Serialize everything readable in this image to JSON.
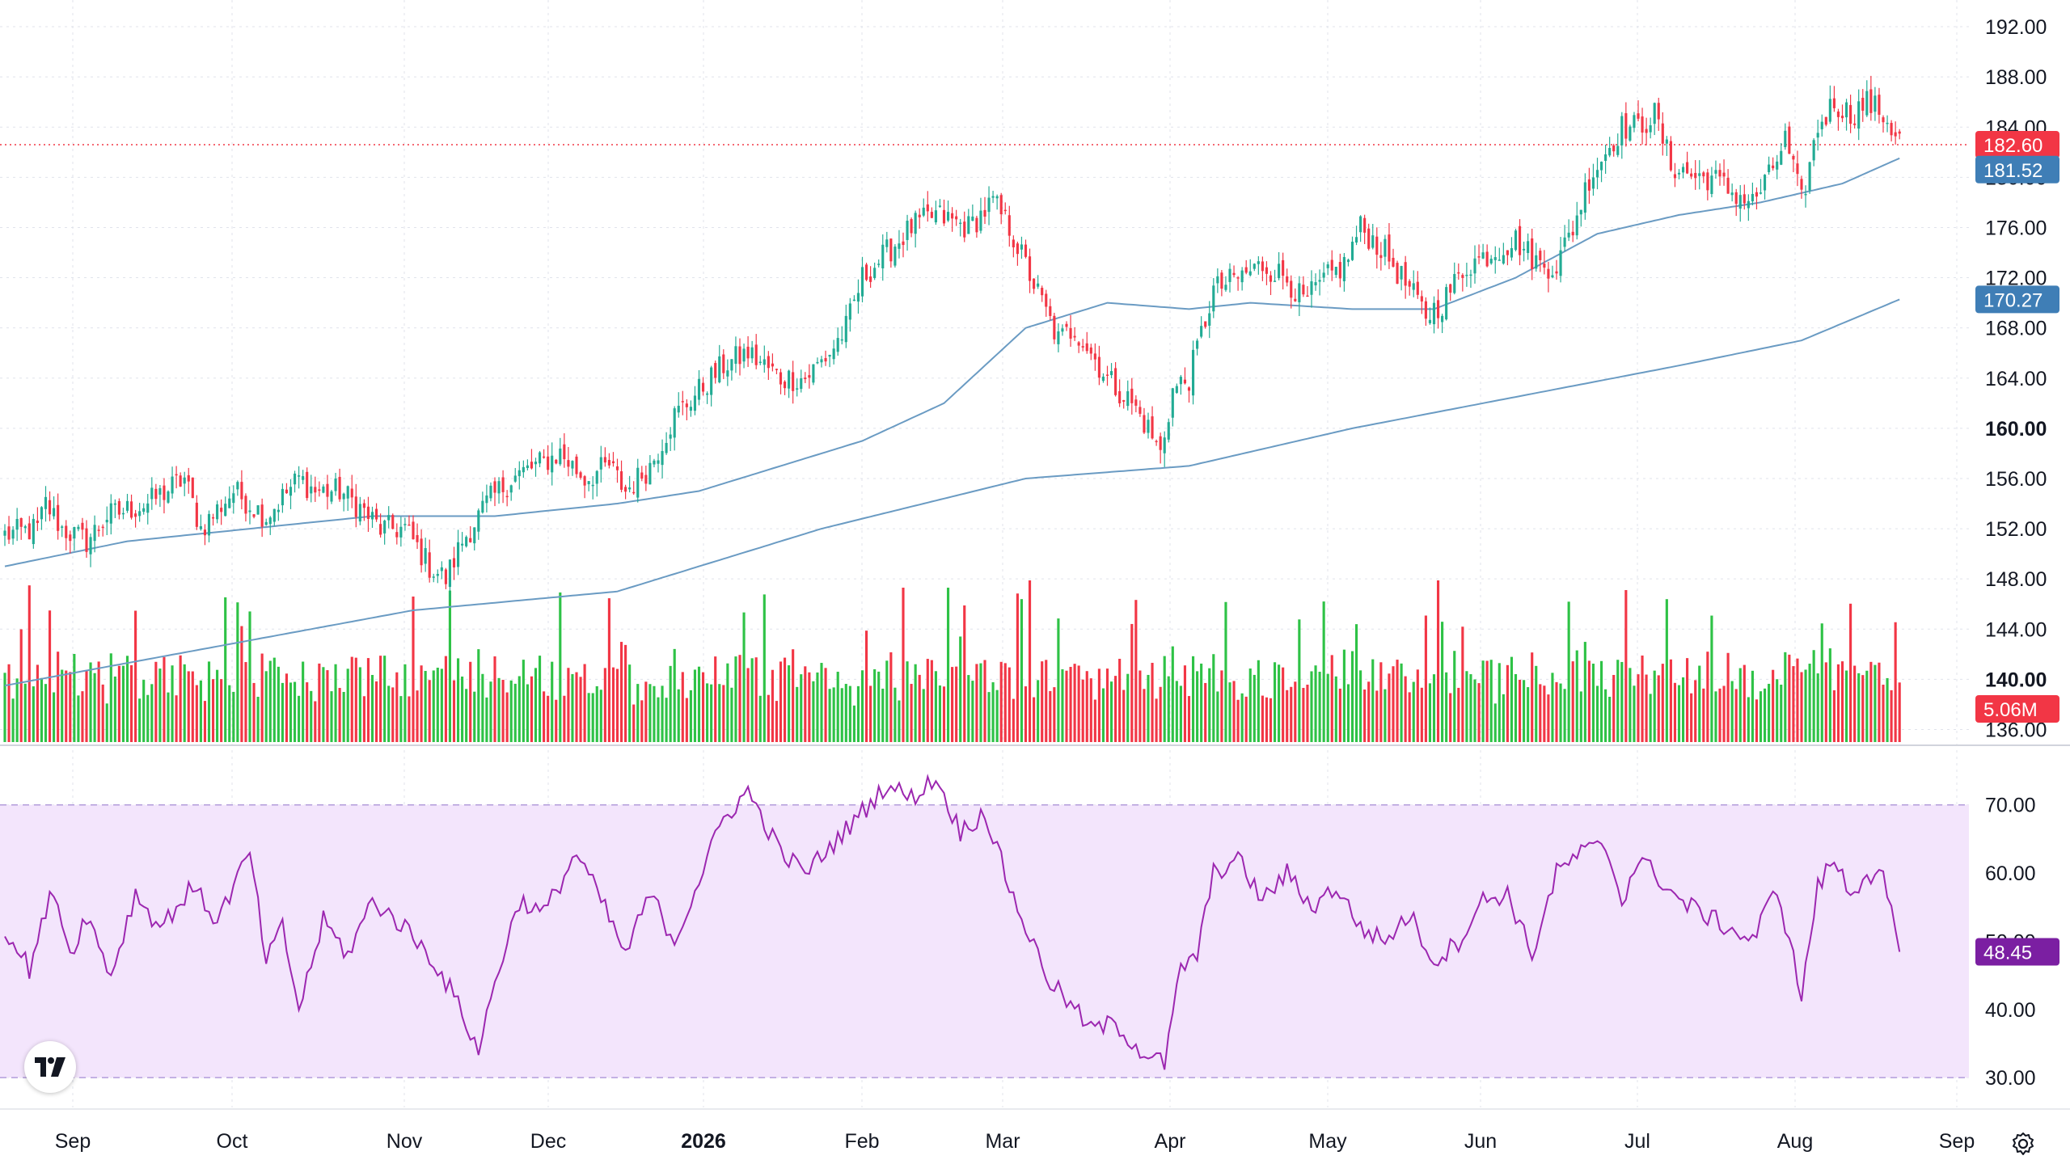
{
  "chart_data": {
    "type": "candlestick",
    "x_axis": {
      "labels": [
        "Sep",
        "Oct",
        "Nov",
        "Dec",
        "2026",
        "Feb",
        "Mar",
        "Apr",
        "May",
        "Jun",
        "Jul",
        "Aug",
        "Sep"
      ],
      "bold_labels": [
        "2026"
      ]
    },
    "price_axis": {
      "ticks": [
        "192.00",
        "188.00",
        "184.00",
        "180.00",
        "176.00",
        "172.00",
        "168.00",
        "164.00",
        "160.00",
        "156.00",
        "152.00",
        "148.00",
        "144.00",
        "140.00",
        "136.00"
      ],
      "bold_ticks": [
        "160.00",
        "140.00"
      ],
      "range": [
        135,
        194
      ]
    },
    "rsi_axis": {
      "ticks": [
        "70.00",
        "60.00",
        "50.00",
        "40.00",
        "30.00"
      ],
      "range": [
        28,
        74
      ],
      "band": [
        30,
        70
      ]
    },
    "last_price": {
      "value": 182.6,
      "label": "182.60"
    },
    "ma_fast": {
      "value": 181.52,
      "label": "181.52"
    },
    "ma_slow": {
      "value": 170.27,
      "label": "170.27"
    },
    "volume_last": {
      "label": "5.06M"
    },
    "rsi_last": {
      "value": 48.45,
      "label": "48.45"
    },
    "anchors": {
      "close": [
        [
          0,
          151.5
        ],
        [
          8,
          152
        ],
        [
          10,
          154
        ],
        [
          14,
          152
        ],
        [
          20,
          151
        ],
        [
          25,
          153
        ],
        [
          35,
          154
        ],
        [
          44,
          156
        ],
        [
          48,
          152
        ],
        [
          56,
          155
        ],
        [
          64,
          153
        ],
        [
          72,
          156
        ],
        [
          76,
          155
        ],
        [
          82,
          155
        ],
        [
          86,
          154
        ],
        [
          92,
          152
        ],
        [
          98,
          152
        ],
        [
          100,
          151
        ],
        [
          104,
          149
        ],
        [
          108,
          148
        ],
        [
          112,
          151
        ],
        [
          118,
          154
        ],
        [
          124,
          156
        ],
        [
          130,
          157
        ],
        [
          136,
          158
        ],
        [
          142,
          156
        ],
        [
          148,
          157
        ],
        [
          152,
          155
        ],
        [
          158,
          157
        ],
        [
          164,
          161
        ],
        [
          170,
          163
        ],
        [
          176,
          165
        ],
        [
          182,
          166
        ],
        [
          186,
          165
        ],
        [
          190,
          164
        ],
        [
          196,
          164
        ],
        [
          202,
          166
        ],
        [
          206,
          168
        ],
        [
          210,
          172
        ],
        [
          216,
          174
        ],
        [
          222,
          176
        ],
        [
          228,
          177
        ],
        [
          236,
          176
        ],
        [
          242,
          178
        ],
        [
          246,
          176
        ],
        [
          250,
          173
        ],
        [
          254,
          170
        ],
        [
          258,
          167
        ],
        [
          262,
          168
        ],
        [
          266,
          166
        ],
        [
          270,
          164
        ],
        [
          276,
          162
        ],
        [
          280,
          160
        ],
        [
          283,
          158
        ],
        [
          286,
          163
        ],
        [
          290,
          164
        ],
        [
          296,
          171
        ],
        [
          302,
          172
        ],
        [
          308,
          173
        ],
        [
          314,
          172
        ],
        [
          318,
          170
        ],
        [
          324,
          172
        ],
        [
          328,
          173
        ],
        [
          332,
          176
        ],
        [
          338,
          174
        ],
        [
          344,
          171
        ],
        [
          348,
          169
        ],
        [
          352,
          170
        ],
        [
          358,
          173
        ],
        [
          364,
          174
        ],
        [
          370,
          175
        ],
        [
          376,
          173
        ],
        [
          380,
          173
        ],
        [
          384,
          176
        ],
        [
          388,
          180
        ],
        [
          392,
          182
        ],
        [
          396,
          184
        ],
        [
          400,
          184
        ],
        [
          404,
          185
        ],
        [
          408,
          181
        ],
        [
          414,
          180
        ],
        [
          418,
          180
        ],
        [
          422,
          179
        ],
        [
          428,
          178
        ],
        [
          432,
          180
        ],
        [
          436,
          183
        ],
        [
          440,
          178
        ],
        [
          444,
          184
        ],
        [
          448,
          186
        ],
        [
          452,
          185
        ],
        [
          456,
          186
        ],
        [
          460,
          185
        ],
        [
          464,
          183
        ]
      ],
      "ma_fast": [
        [
          0,
          149
        ],
        [
          30,
          151
        ],
        [
          60,
          152
        ],
        [
          90,
          153
        ],
        [
          120,
          153
        ],
        [
          150,
          154
        ],
        [
          170,
          155
        ],
        [
          190,
          157
        ],
        [
          210,
          159
        ],
        [
          230,
          162
        ],
        [
          250,
          168
        ],
        [
          270,
          170
        ],
        [
          290,
          169.5
        ],
        [
          305,
          170
        ],
        [
          330,
          169.5
        ],
        [
          350,
          169.5
        ],
        [
          370,
          172
        ],
        [
          390,
          175.5
        ],
        [
          410,
          177
        ],
        [
          430,
          178
        ],
        [
          450,
          179.5
        ],
        [
          464,
          181.52
        ]
      ],
      "ma_slow": [
        [
          0,
          139.5
        ],
        [
          50,
          142.5
        ],
        [
          100,
          145.5
        ],
        [
          150,
          147
        ],
        [
          200,
          152
        ],
        [
          250,
          156
        ],
        [
          290,
          157
        ],
        [
          330,
          160
        ],
        [
          370,
          162.5
        ],
        [
          410,
          165
        ],
        [
          440,
          167
        ],
        [
          464,
          170.27
        ]
      ],
      "rsi": [
        [
          0,
          52
        ],
        [
          6,
          46
        ],
        [
          12,
          58
        ],
        [
          16,
          48
        ],
        [
          20,
          54
        ],
        [
          26,
          45
        ],
        [
          32,
          57
        ],
        [
          38,
          52
        ],
        [
          46,
          58
        ],
        [
          52,
          53
        ],
        [
          60,
          63
        ],
        [
          64,
          47
        ],
        [
          68,
          52
        ],
        [
          72,
          40
        ],
        [
          78,
          53
        ],
        [
          84,
          48
        ],
        [
          90,
          56
        ],
        [
          98,
          52
        ],
        [
          104,
          48
        ],
        [
          110,
          42
        ],
        [
          116,
          34
        ],
        [
          120,
          44
        ],
        [
          126,
          56
        ],
        [
          132,
          54
        ],
        [
          140,
          63
        ],
        [
          146,
          56
        ],
        [
          152,
          48
        ],
        [
          158,
          57
        ],
        [
          164,
          50
        ],
        [
          170,
          59
        ],
        [
          176,
          68
        ],
        [
          182,
          72
        ],
        [
          190,
          63
        ],
        [
          196,
          60
        ],
        [
          204,
          65
        ],
        [
          210,
          69
        ],
        [
          216,
          73
        ],
        [
          222,
          71
        ],
        [
          228,
          74
        ],
        [
          234,
          66
        ],
        [
          240,
          69
        ],
        [
          246,
          58
        ],
        [
          250,
          52
        ],
        [
          256,
          44
        ],
        [
          262,
          40
        ],
        [
          266,
          37
        ],
        [
          272,
          38
        ],
        [
          278,
          34
        ],
        [
          284,
          32
        ],
        [
          288,
          46
        ],
        [
          292,
          48
        ],
        [
          296,
          60
        ],
        [
          302,
          62
        ],
        [
          308,
          56
        ],
        [
          314,
          60
        ],
        [
          320,
          55
        ],
        [
          326,
          58
        ],
        [
          332,
          52
        ],
        [
          338,
          50
        ],
        [
          344,
          54
        ],
        [
          350,
          47
        ],
        [
          356,
          50
        ],
        [
          362,
          56
        ],
        [
          368,
          57
        ],
        [
          374,
          48
        ],
        [
          380,
          60
        ],
        [
          386,
          63
        ],
        [
          392,
          64
        ],
        [
          396,
          56
        ],
        [
          400,
          62
        ],
        [
          404,
          60
        ],
        [
          410,
          56
        ],
        [
          416,
          54
        ],
        [
          422,
          52
        ],
        [
          428,
          50
        ],
        [
          434,
          58
        ],
        [
          440,
          42
        ],
        [
          444,
          58
        ],
        [
          448,
          62
        ],
        [
          452,
          57
        ],
        [
          456,
          60
        ],
        [
          460,
          59
        ],
        [
          464,
          48.45
        ]
      ]
    },
    "colors": {
      "up": "#22ab94",
      "down": "#f23645",
      "volume_up": "#2ec246",
      "ma": "#6a9bc3",
      "rsi_line": "#9c27b0",
      "rsi_band": "#f3e5fc",
      "last_tag": "#f23645",
      "ma_tag": "#3f7eb6",
      "rsi_tag": "#7b1fa2",
      "grid": "#e0e3eb"
    }
  }
}
